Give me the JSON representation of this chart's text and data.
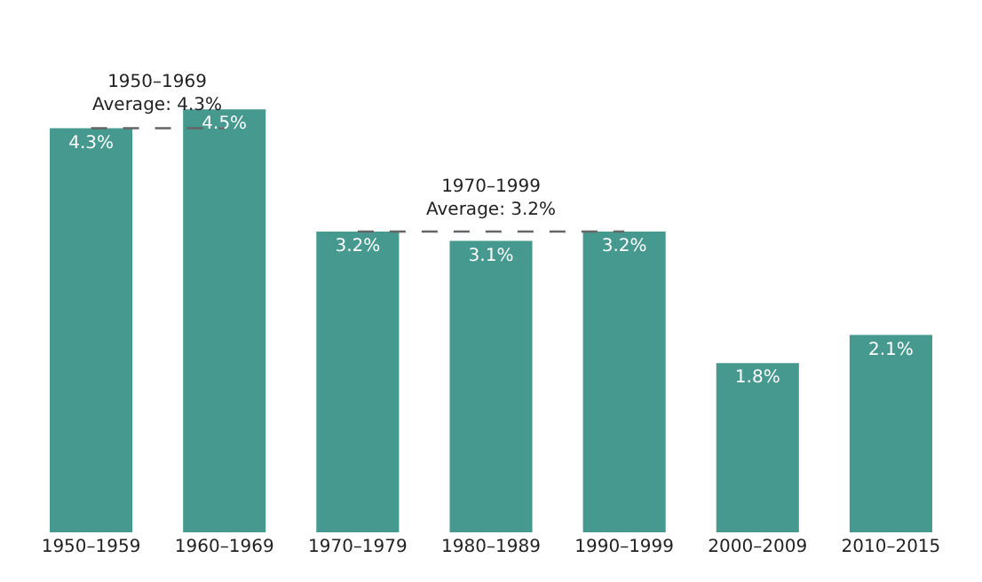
{
  "chart_data": {
    "type": "bar",
    "categories": [
      "1950–1959",
      "1960–1969",
      "1970–1979",
      "1980–1989",
      "1990–1999",
      "2000–2009",
      "2010–2015"
    ],
    "series": [
      {
        "color": "#46998f",
        "values": [
          4.3,
          4.5,
          3.2,
          3.1,
          3.2,
          1.8,
          2.1
        ],
        "value_labels": [
          "4.3%",
          "4.5%",
          "3.2%",
          "3.1%",
          "3.2%",
          "1.8%",
          "2.1%"
        ]
      },
      {
        "type": "line",
        "color": "#666666",
        "line_style": "dashed",
        "x": [
          "1950–1959",
          "1960–1969"
        ],
        "values": [
          4.3,
          4.3
        ]
      },
      {
        "type": "line",
        "color": "#666666",
        "line_style": "dashed",
        "x": [
          "1970–1979",
          "1990–1999"
        ],
        "values": [
          3.2,
          3.2
        ]
      }
    ],
    "annotations": [
      {
        "text": "1950–1969\nAverage: 4.3%",
        "x": "1950–1959",
        "y": 4.3
      },
      {
        "text": "1970–1999\nAverage: 3.2%",
        "x": "1980–1989",
        "y": 3.2
      }
    ],
    "tick_labels": "x",
    "grid": false
  }
}
